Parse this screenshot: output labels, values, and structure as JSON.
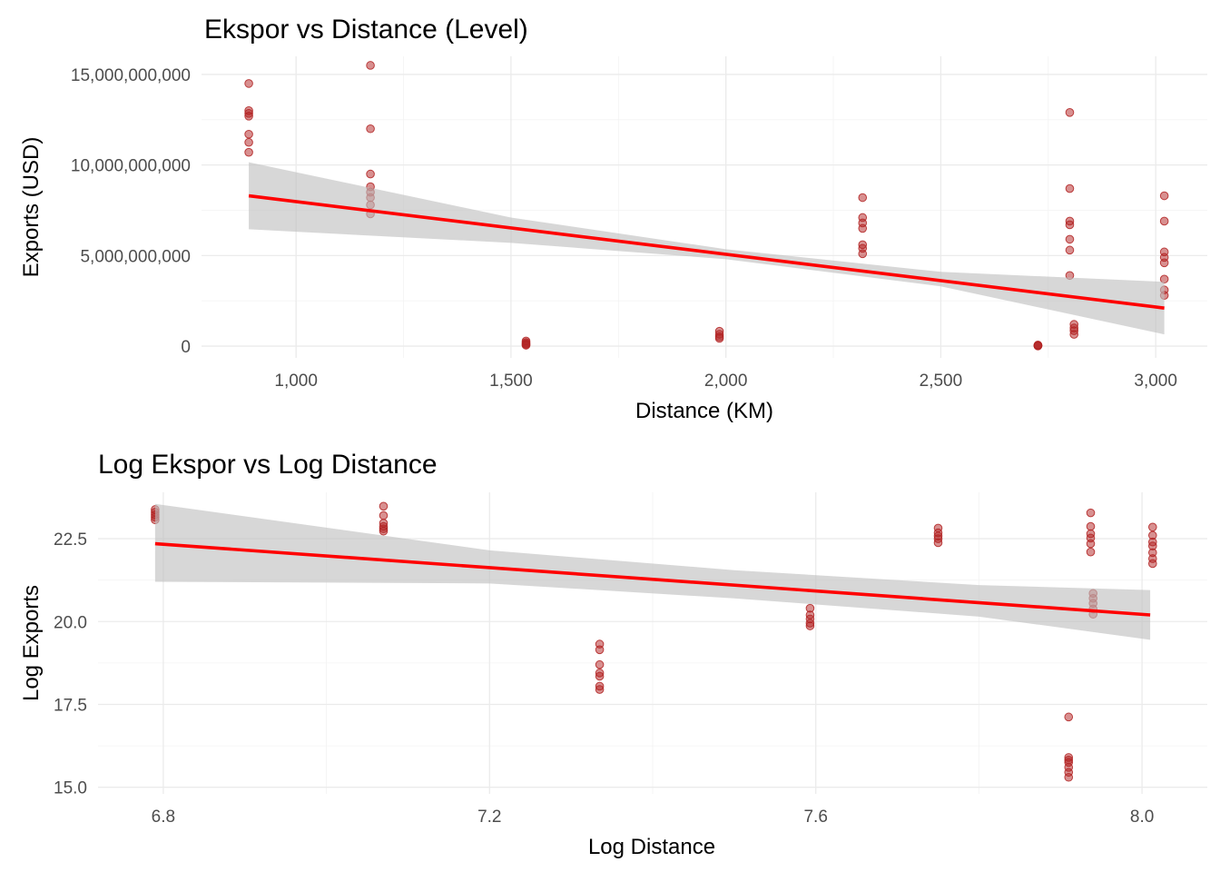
{
  "chart_data": [
    {
      "type": "scatter",
      "title": "Ekspor vs Distance (Level)",
      "xlabel": "Distance (KM)",
      "ylabel": "Exports (USD)",
      "xlim": [
        780,
        3120
      ],
      "ylim": [
        -650000000,
        16000000000
      ],
      "x_ticks": [
        1000,
        1500,
        2000,
        2500,
        3000
      ],
      "x_tick_labels": [
        "1,000",
        "1,500",
        "2,000",
        "2,500",
        "3,000"
      ],
      "y_ticks": [
        0,
        5000000000,
        10000000000,
        15000000000
      ],
      "y_tick_labels": [
        "0",
        "5,000,000,000",
        "10,000,000,000",
        "15,000,000,000"
      ],
      "point_color": "#b22222",
      "line_color": "#ff0000",
      "band_color": "#bfbfbf",
      "points": [
        [
          890,
          14500000000
        ],
        [
          890,
          13000000000
        ],
        [
          890,
          12850000000
        ],
        [
          890,
          12700000000
        ],
        [
          890,
          11700000000
        ],
        [
          890,
          11250000000
        ],
        [
          890,
          10700000000
        ],
        [
          1173,
          15500000000
        ],
        [
          1173,
          12000000000
        ],
        [
          1173,
          9500000000
        ],
        [
          1173,
          8800000000
        ],
        [
          1173,
          8500000000
        ],
        [
          1173,
          8200000000
        ],
        [
          1173,
          7800000000
        ],
        [
          1173,
          7300000000
        ],
        [
          1535,
          280000000
        ],
        [
          1535,
          200000000
        ],
        [
          1535,
          140000000
        ],
        [
          1535,
          90000000
        ],
        [
          1535,
          50000000
        ],
        [
          1985,
          820000000
        ],
        [
          1985,
          650000000
        ],
        [
          1985,
          520000000
        ],
        [
          1985,
          430000000
        ],
        [
          2318,
          8200000000
        ],
        [
          2318,
          7100000000
        ],
        [
          2318,
          6800000000
        ],
        [
          2318,
          6500000000
        ],
        [
          2318,
          5600000000
        ],
        [
          2318,
          5400000000
        ],
        [
          2318,
          5100000000
        ],
        [
          2726,
          60000000
        ],
        [
          2726,
          40000000
        ],
        [
          2726,
          20000000
        ],
        [
          2726,
          10000000
        ],
        [
          2800,
          12900000000
        ],
        [
          2800,
          8700000000
        ],
        [
          2800,
          6900000000
        ],
        [
          2800,
          6700000000
        ],
        [
          2800,
          5900000000
        ],
        [
          2800,
          5300000000
        ],
        [
          2800,
          3900000000
        ],
        [
          2810,
          1200000000
        ],
        [
          2810,
          1000000000
        ],
        [
          2810,
          850000000
        ],
        [
          2810,
          650000000
        ],
        [
          3020,
          8300000000
        ],
        [
          3020,
          6900000000
        ],
        [
          3020,
          5200000000
        ],
        [
          3020,
          4900000000
        ],
        [
          3020,
          4600000000
        ],
        [
          3020,
          3700000000
        ],
        [
          3020,
          3100000000
        ],
        [
          3020,
          2800000000
        ]
      ],
      "fit": {
        "x": [
          890,
          3020
        ],
        "y": [
          8300000000,
          2100000000
        ]
      },
      "band": {
        "x": [
          890,
          1500,
          2000,
          2500,
          3020
        ],
        "lower": [
          6450000000,
          5700000000,
          4800000000,
          3300000000,
          650000000
        ],
        "upper": [
          10150000000,
          7100000000,
          5350000000,
          4100000000,
          3550000000
        ]
      }
    },
    {
      "type": "scatter",
      "title": "Log Ekspor vs Log Distance",
      "xlabel": "Log Distance",
      "ylabel": "Log Exports",
      "xlim": [
        6.72,
        8.08
      ],
      "ylim": [
        14.8,
        23.9
      ],
      "x_ticks": [
        6.8,
        7.2,
        7.6,
        8.0
      ],
      "x_tick_labels": [
        "6.8",
        "7.2",
        "7.6",
        "8.0"
      ],
      "y_ticks": [
        15.0,
        17.5,
        20.0,
        22.5
      ],
      "y_tick_labels": [
        "15.0",
        "17.5",
        "20.0",
        "22.5"
      ],
      "point_color": "#b22222",
      "line_color": "#ff0000",
      "band_color": "#bfbfbf",
      "points": [
        [
          6.79,
          23.38
        ],
        [
          6.79,
          23.3
        ],
        [
          6.79,
          23.22
        ],
        [
          6.79,
          23.15
        ],
        [
          6.79,
          23.07
        ],
        [
          7.07,
          23.48
        ],
        [
          7.07,
          23.2
        ],
        [
          7.07,
          22.97
        ],
        [
          7.07,
          22.87
        ],
        [
          7.07,
          22.8
        ],
        [
          7.07,
          22.73
        ],
        [
          7.335,
          19.32
        ],
        [
          7.335,
          19.15
        ],
        [
          7.335,
          18.7
        ],
        [
          7.335,
          18.45
        ],
        [
          7.335,
          18.35
        ],
        [
          7.335,
          18.05
        ],
        [
          7.335,
          17.95
        ],
        [
          7.593,
          20.4
        ],
        [
          7.593,
          20.2
        ],
        [
          7.593,
          20.08
        ],
        [
          7.593,
          19.95
        ],
        [
          7.593,
          19.87
        ],
        [
          7.75,
          22.82
        ],
        [
          7.75,
          22.68
        ],
        [
          7.75,
          22.58
        ],
        [
          7.75,
          22.5
        ],
        [
          7.75,
          22.38
        ],
        [
          7.91,
          17.12
        ],
        [
          7.91,
          15.9
        ],
        [
          7.91,
          15.82
        ],
        [
          7.91,
          15.75
        ],
        [
          7.91,
          15.6
        ],
        [
          7.91,
          15.45
        ],
        [
          7.91,
          15.3
        ],
        [
          7.937,
          23.28
        ],
        [
          7.937,
          22.87
        ],
        [
          7.937,
          22.65
        ],
        [
          7.937,
          22.52
        ],
        [
          7.937,
          22.35
        ],
        [
          7.937,
          22.1
        ],
        [
          7.94,
          20.85
        ],
        [
          7.94,
          20.7
        ],
        [
          7.94,
          20.55
        ],
        [
          7.94,
          20.38
        ],
        [
          7.94,
          20.22
        ],
        [
          8.013,
          22.85
        ],
        [
          8.013,
          22.6
        ],
        [
          8.013,
          22.4
        ],
        [
          8.013,
          22.28
        ],
        [
          8.013,
          22.08
        ],
        [
          8.013,
          21.9
        ],
        [
          8.013,
          21.75
        ]
      ],
      "fit": {
        "x": [
          6.79,
          8.01
        ],
        "y": [
          22.35,
          20.2
        ]
      },
      "band": {
        "x": [
          6.79,
          7.2,
          7.5,
          7.8,
          8.01
        ],
        "lower": [
          21.2,
          21.15,
          20.7,
          20.15,
          19.45
        ],
        "upper": [
          23.55,
          22.15,
          21.55,
          21.1,
          20.95
        ]
      }
    }
  ]
}
